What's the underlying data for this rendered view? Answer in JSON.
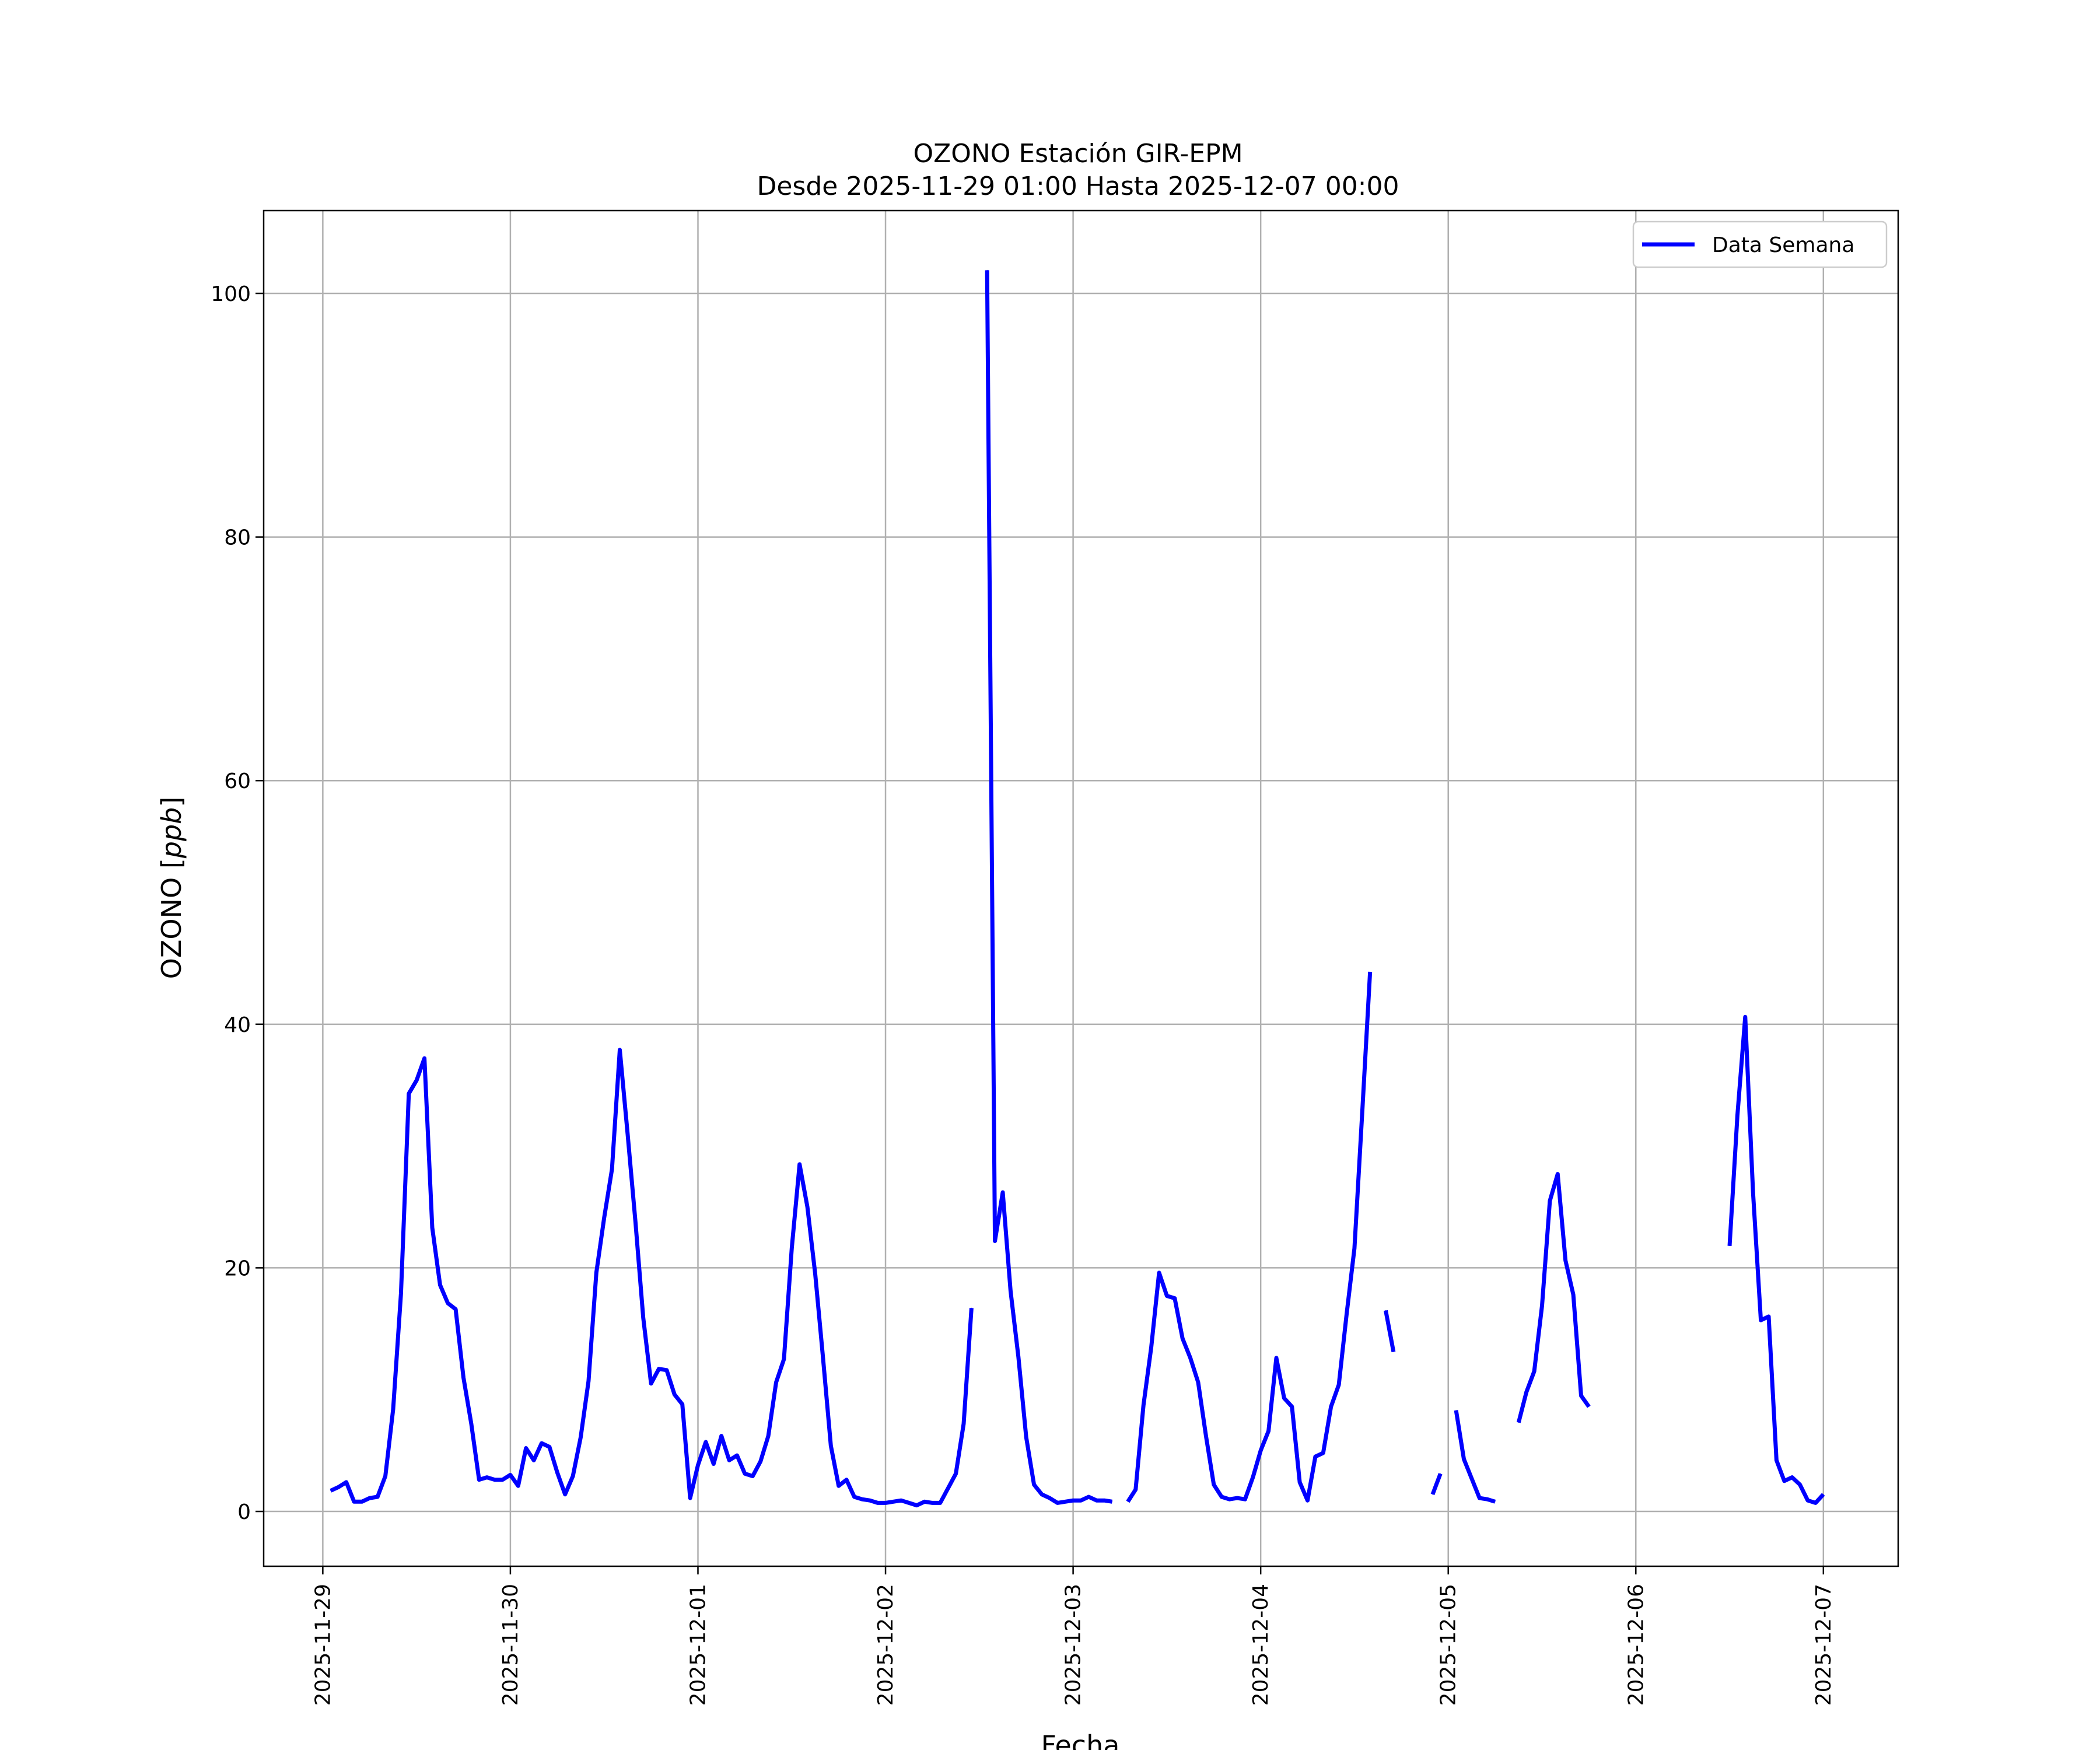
{
  "chart_data": {
    "type": "line",
    "title_line1": "OZONO Estación GIR-EPM",
    "title_line2": "Desde 2025-11-29 01:00 Hasta 2025-12-07 00:00",
    "xlabel": "Fecha",
    "ylabel": "OZONO [ppb]",
    "ylabel_italic": "ppb",
    "ylim": [
      -4.5,
      106.8
    ],
    "y_ticks": [
      0,
      20,
      40,
      60,
      80,
      100
    ],
    "x_ticks": [
      "2025-11-29",
      "2025-11-30",
      "2025-12-01",
      "2025-12-02",
      "2025-12-03",
      "2025-12-04",
      "2025-12-05",
      "2025-12-06",
      "2025-12-07"
    ],
    "x_range": [
      "2025-11-28 16:26",
      "2025-12-07 09:34"
    ],
    "grid": true,
    "legend_position": "top-right",
    "series": [
      {
        "name": "Data Semana",
        "color": "#0000ff",
        "segments": [
          [
            [
              "2025-11-29 01:00",
              1.7
            ],
            [
              "2025-11-29 02:00",
              2.0
            ],
            [
              "2025-11-29 03:00",
              2.4
            ],
            [
              "2025-11-29 04:00",
              0.8
            ],
            [
              "2025-11-29 05:00",
              0.8
            ],
            [
              "2025-11-29 06:00",
              1.1
            ],
            [
              "2025-11-29 07:00",
              1.2
            ],
            [
              "2025-11-29 08:00",
              2.9
            ],
            [
              "2025-11-29 09:00",
              8.4
            ],
            [
              "2025-11-29 10:00",
              17.9
            ],
            [
              "2025-11-29 11:00",
              34.3
            ],
            [
              "2025-11-29 12:00",
              35.4
            ],
            [
              "2025-11-29 13:00",
              37.2
            ],
            [
              "2025-11-29 14:00",
              23.3
            ],
            [
              "2025-11-29 15:00",
              18.6
            ],
            [
              "2025-11-29 16:00",
              17.1
            ],
            [
              "2025-11-29 17:00",
              16.6
            ],
            [
              "2025-11-29 18:00",
              11.0
            ],
            [
              "2025-11-29 19:00",
              7.2
            ],
            [
              "2025-11-29 20:00",
              2.6
            ],
            [
              "2025-11-29 21:00",
              2.8
            ],
            [
              "2025-11-29 22:00",
              2.6
            ],
            [
              "2025-11-29 23:00",
              2.6
            ],
            [
              "2025-11-30 00:00",
              3.0
            ],
            [
              "2025-11-30 01:00",
              2.1
            ],
            [
              "2025-11-30 02:00",
              5.2
            ],
            [
              "2025-11-30 03:00",
              4.2
            ],
            [
              "2025-11-30 04:00",
              5.6
            ],
            [
              "2025-11-30 05:00",
              5.3
            ],
            [
              "2025-11-30 06:00",
              3.2
            ],
            [
              "2025-11-30 07:00",
              1.4
            ],
            [
              "2025-11-30 08:00",
              2.9
            ],
            [
              "2025-11-30 09:00",
              6.1
            ],
            [
              "2025-11-30 10:00",
              10.7
            ],
            [
              "2025-11-30 11:00",
              19.6
            ],
            [
              "2025-11-30 12:00",
              24.1
            ],
            [
              "2025-11-30 13:00",
              28.1
            ],
            [
              "2025-11-30 14:00",
              37.9
            ],
            [
              "2025-11-30 15:00",
              31.0
            ],
            [
              "2025-11-30 16:00",
              23.8
            ],
            [
              "2025-11-30 17:00",
              15.9
            ],
            [
              "2025-11-30 18:00",
              10.5
            ],
            [
              "2025-11-30 19:00",
              11.7
            ],
            [
              "2025-11-30 20:00",
              11.6
            ],
            [
              "2025-11-30 21:00",
              9.6
            ],
            [
              "2025-11-30 22:00",
              8.8
            ],
            [
              "2025-11-30 23:00",
              1.1
            ],
            [
              "2025-12-01 00:00",
              3.8
            ],
            [
              "2025-12-01 01:00",
              5.7
            ],
            [
              "2025-12-01 02:00",
              3.9
            ],
            [
              "2025-12-01 03:00",
              6.2
            ],
            [
              "2025-12-01 04:00",
              4.2
            ],
            [
              "2025-12-01 05:00",
              4.6
            ],
            [
              "2025-12-01 06:00",
              3.1
            ],
            [
              "2025-12-01 07:00",
              2.9
            ],
            [
              "2025-12-01 08:00",
              4.1
            ],
            [
              "2025-12-01 09:00",
              6.2
            ],
            [
              "2025-12-01 10:00",
              10.6
            ],
            [
              "2025-12-01 11:00",
              12.5
            ],
            [
              "2025-12-01 12:00",
              21.6
            ],
            [
              "2025-12-01 13:00",
              28.5
            ],
            [
              "2025-12-01 14:00",
              25.0
            ],
            [
              "2025-12-01 15:00",
              19.5
            ],
            [
              "2025-12-01 16:00",
              12.6
            ],
            [
              "2025-12-01 17:00",
              5.4
            ],
            [
              "2025-12-01 18:00",
              2.1
            ],
            [
              "2025-12-01 19:00",
              2.6
            ],
            [
              "2025-12-01 20:00",
              1.2
            ],
            [
              "2025-12-01 21:00",
              1.0
            ],
            [
              "2025-12-01 22:00",
              0.9
            ],
            [
              "2025-12-01 23:00",
              0.7
            ],
            [
              "2025-12-02 00:00",
              0.7
            ],
            [
              "2025-12-02 01:00",
              0.8
            ],
            [
              "2025-12-02 02:00",
              0.9
            ],
            [
              "2025-12-02 03:00",
              0.7
            ],
            [
              "2025-12-02 04:00",
              0.5
            ],
            [
              "2025-12-02 05:00",
              0.8
            ],
            [
              "2025-12-02 06:00",
              0.7
            ],
            [
              "2025-12-02 07:00",
              0.7
            ],
            [
              "2025-12-02 08:00",
              1.9
            ],
            [
              "2025-12-02 09:00",
              3.1
            ],
            [
              "2025-12-02 10:00",
              7.2
            ],
            [
              "2025-12-02 11:00",
              16.7
            ]
          ],
          [
            [
              "2025-12-02 13:00",
              101.9
            ],
            [
              "2025-12-02 14:00",
              22.2
            ],
            [
              "2025-12-02 15:00",
              26.2
            ],
            [
              "2025-12-02 16:00",
              18.1
            ],
            [
              "2025-12-02 17:00",
              12.7
            ],
            [
              "2025-12-02 18:00",
              6.1
            ],
            [
              "2025-12-02 19:00",
              2.2
            ],
            [
              "2025-12-02 20:00",
              1.4
            ],
            [
              "2025-12-02 21:00",
              1.1
            ],
            [
              "2025-12-02 22:00",
              0.7
            ],
            [
              "2025-12-02 23:00",
              0.8
            ],
            [
              "2025-12-03 00:00",
              0.9
            ],
            [
              "2025-12-03 01:00",
              0.9
            ],
            [
              "2025-12-03 02:00",
              1.2
            ],
            [
              "2025-12-03 03:00",
              0.9
            ],
            [
              "2025-12-03 04:00",
              0.9
            ],
            [
              "2025-12-03 05:00",
              0.8
            ]
          ],
          [
            [
              "2025-12-03 07:00",
              0.8
            ],
            [
              "2025-12-03 08:00",
              1.8
            ],
            [
              "2025-12-03 09:00",
              8.7
            ],
            [
              "2025-12-03 10:00",
              13.5
            ],
            [
              "2025-12-03 11:00",
              19.6
            ],
            [
              "2025-12-03 12:00",
              17.7
            ],
            [
              "2025-12-03 13:00",
              17.5
            ],
            [
              "2025-12-03 14:00",
              14.2
            ],
            [
              "2025-12-03 15:00",
              12.6
            ],
            [
              "2025-12-03 16:00",
              10.6
            ],
            [
              "2025-12-03 17:00",
              6.2
            ],
            [
              "2025-12-03 18:00",
              2.2
            ],
            [
              "2025-12-03 19:00",
              1.2
            ],
            [
              "2025-12-03 20:00",
              1.0
            ],
            [
              "2025-12-03 21:00",
              1.1
            ],
            [
              "2025-12-03 22:00",
              1.0
            ],
            [
              "2025-12-03 23:00",
              2.8
            ],
            [
              "2025-12-04 00:00",
              5.0
            ],
            [
              "2025-12-04 01:00",
              6.6
            ],
            [
              "2025-12-04 02:00",
              12.6
            ],
            [
              "2025-12-04 03:00",
              9.3
            ],
            [
              "2025-12-04 04:00",
              8.6
            ],
            [
              "2025-12-04 05:00",
              2.4
            ],
            [
              "2025-12-04 06:00",
              0.9
            ],
            [
              "2025-12-04 07:00",
              4.5
            ],
            [
              "2025-12-04 08:00",
              4.8
            ],
            [
              "2025-12-04 09:00",
              8.6
            ],
            [
              "2025-12-04 10:00",
              10.4
            ],
            [
              "2025-12-04 11:00",
              16.2
            ],
            [
              "2025-12-04 12:00",
              21.6
            ],
            [
              "2025-12-04 13:00",
              32.8
            ],
            [
              "2025-12-04 14:00",
              44.3
            ]
          ],
          [
            [
              "2025-12-04 16:00",
              16.5
            ],
            [
              "2025-12-04 17:00",
              13.1
            ]
          ],
          [
            [
              "2025-12-04 22:00",
              1.4
            ],
            [
              "2025-12-04 23:00",
              3.1
            ]
          ],
          [
            [
              "2025-12-05 01:00",
              8.3
            ],
            [
              "2025-12-05 02:00",
              4.3
            ],
            [
              "2025-12-05 03:00",
              2.7
            ],
            [
              "2025-12-05 04:00",
              1.1
            ],
            [
              "2025-12-05 05:00",
              1.0
            ],
            [
              "2025-12-05 06:00",
              0.8
            ]
          ],
          [
            [
              "2025-12-05 09:00",
              7.3
            ],
            [
              "2025-12-05 10:00",
              9.8
            ],
            [
              "2025-12-05 11:00",
              11.5
            ],
            [
              "2025-12-05 12:00",
              16.9
            ],
            [
              "2025-12-05 13:00",
              25.5
            ],
            [
              "2025-12-05 14:00",
              27.7
            ],
            [
              "2025-12-05 15:00",
              20.6
            ],
            [
              "2025-12-05 16:00",
              17.8
            ],
            [
              "2025-12-05 17:00",
              9.5
            ],
            [
              "2025-12-05 18:00",
              8.6
            ]
          ],
          [
            [
              "2025-12-06 12:00",
              21.8
            ],
            [
              "2025-12-06 13:00",
              32.5
            ],
            [
              "2025-12-06 14:00",
              40.6
            ],
            [
              "2025-12-06 15:00",
              26.2
            ],
            [
              "2025-12-06 16:00",
              15.7
            ],
            [
              "2025-12-06 17:00",
              16.0
            ],
            [
              "2025-12-06 18:00",
              4.2
            ],
            [
              "2025-12-06 19:00",
              2.5
            ],
            [
              "2025-12-06 20:00",
              2.8
            ],
            [
              "2025-12-06 21:00",
              2.2
            ],
            [
              "2025-12-06 22:00",
              0.9
            ],
            [
              "2025-12-06 23:00",
              0.7
            ],
            [
              "2025-12-07 00:00",
              1.4
            ]
          ]
        ]
      }
    ]
  }
}
